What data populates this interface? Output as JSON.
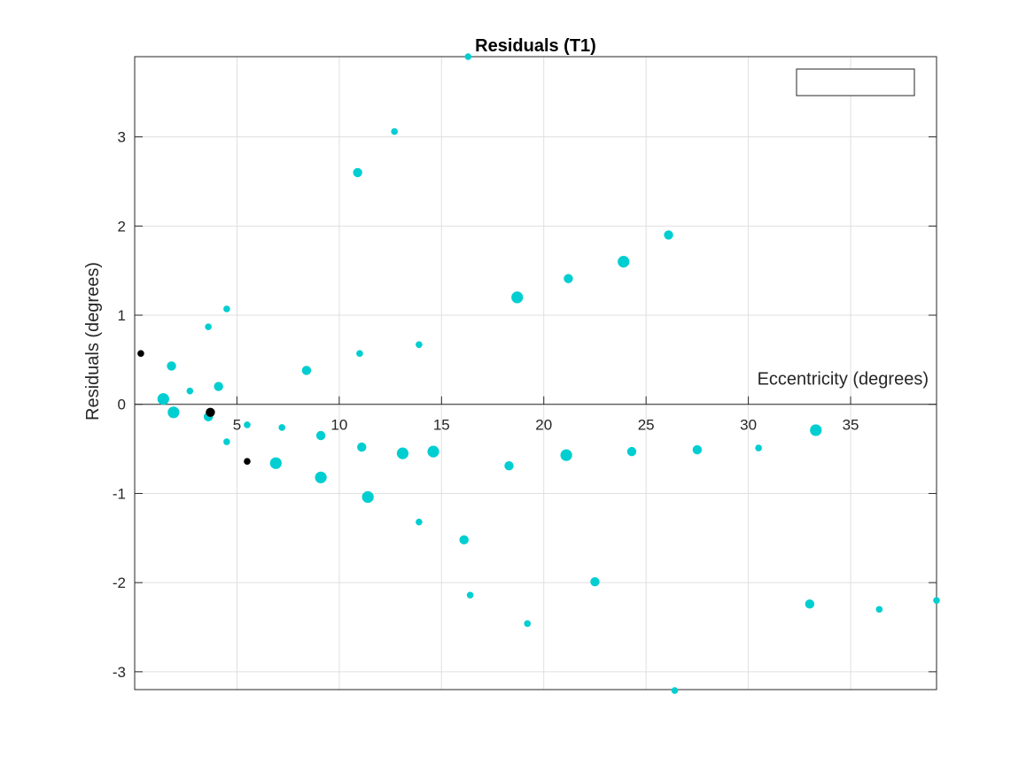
{
  "chart_data": {
    "type": "scatter",
    "title": "Residuals (T1)",
    "xlabel": "Eccentricity (degrees)",
    "ylabel": "Residuals (degrees)",
    "xlim": [
      0,
      39.2
    ],
    "ylim": [
      -3.2,
      3.9
    ],
    "xticks": [
      5,
      10,
      15,
      20,
      25,
      30,
      35
    ],
    "yticks": [
      -3,
      -2,
      -1,
      0,
      1,
      2,
      3
    ],
    "x_axis_location": "origin",
    "grid": true,
    "legend": {
      "placement": "top-right",
      "entries": []
    },
    "colors": {
      "primary": "#00ced1",
      "secondary": "#000000"
    },
    "series": [
      {
        "color": "#00ced1",
        "points": [
          {
            "x": 1.4,
            "y": 0.06,
            "size": "large"
          },
          {
            "x": 1.8,
            "y": 0.43,
            "size": "medium"
          },
          {
            "x": 1.9,
            "y": -0.09,
            "size": "large"
          },
          {
            "x": 2.7,
            "y": 0.15,
            "size": "small"
          },
          {
            "x": 3.6,
            "y": 0.87,
            "size": "small"
          },
          {
            "x": 3.6,
            "y": -0.14,
            "size": "medium"
          },
          {
            "x": 4.1,
            "y": 0.2,
            "size": "medium"
          },
          {
            "x": 4.5,
            "y": 1.07,
            "size": "small"
          },
          {
            "x": 4.5,
            "y": -0.42,
            "size": "small"
          },
          {
            "x": 5.5,
            "y": -0.23,
            "size": "small"
          },
          {
            "x": 6.9,
            "y": -0.66,
            "size": "large"
          },
          {
            "x": 7.2,
            "y": -0.26,
            "size": "small"
          },
          {
            "x": 8.4,
            "y": 0.38,
            "size": "medium"
          },
          {
            "x": 9.1,
            "y": -0.82,
            "size": "large"
          },
          {
            "x": 9.1,
            "y": -0.35,
            "size": "medium"
          },
          {
            "x": 10.9,
            "y": 2.6,
            "size": "medium"
          },
          {
            "x": 11.0,
            "y": 0.57,
            "size": "small"
          },
          {
            "x": 11.1,
            "y": -0.48,
            "size": "medium"
          },
          {
            "x": 11.4,
            "y": -1.04,
            "size": "large"
          },
          {
            "x": 12.7,
            "y": 3.06,
            "size": "small"
          },
          {
            "x": 13.1,
            "y": -0.55,
            "size": "large"
          },
          {
            "x": 13.9,
            "y": 0.67,
            "size": "small"
          },
          {
            "x": 13.9,
            "y": -1.32,
            "size": "small"
          },
          {
            "x": 14.6,
            "y": -0.53,
            "size": "large"
          },
          {
            "x": 16.1,
            "y": -1.52,
            "size": "medium"
          },
          {
            "x": 16.3,
            "y": 3.9,
            "size": "small"
          },
          {
            "x": 16.4,
            "y": -2.14,
            "size": "small"
          },
          {
            "x": 18.3,
            "y": -0.69,
            "size": "medium"
          },
          {
            "x": 18.7,
            "y": 1.2,
            "size": "large"
          },
          {
            "x": 19.2,
            "y": -2.46,
            "size": "small"
          },
          {
            "x": 21.2,
            "y": 1.41,
            "size": "medium"
          },
          {
            "x": 21.1,
            "y": -0.57,
            "size": "large"
          },
          {
            "x": 22.5,
            "y": -1.99,
            "size": "medium"
          },
          {
            "x": 23.9,
            "y": 1.6,
            "size": "large"
          },
          {
            "x": 24.3,
            "y": -0.53,
            "size": "medium"
          },
          {
            "x": 26.1,
            "y": 1.9,
            "size": "medium"
          },
          {
            "x": 26.4,
            "y": -3.21,
            "size": "small"
          },
          {
            "x": 27.5,
            "y": -0.51,
            "size": "medium"
          },
          {
            "x": 30.5,
            "y": -0.49,
            "size": "small"
          },
          {
            "x": 33.0,
            "y": -2.24,
            "size": "medium"
          },
          {
            "x": 33.3,
            "y": -0.29,
            "size": "large"
          },
          {
            "x": 36.4,
            "y": -2.3,
            "size": "small"
          },
          {
            "x": 39.2,
            "y": -2.2,
            "size": "small"
          }
        ]
      },
      {
        "color": "#000000",
        "points": [
          {
            "x": 0.3,
            "y": 0.57,
            "size": "small"
          },
          {
            "x": 3.7,
            "y": -0.09,
            "size": "medium"
          },
          {
            "x": 5.5,
            "y": -0.64,
            "size": "small"
          }
        ]
      }
    ]
  }
}
